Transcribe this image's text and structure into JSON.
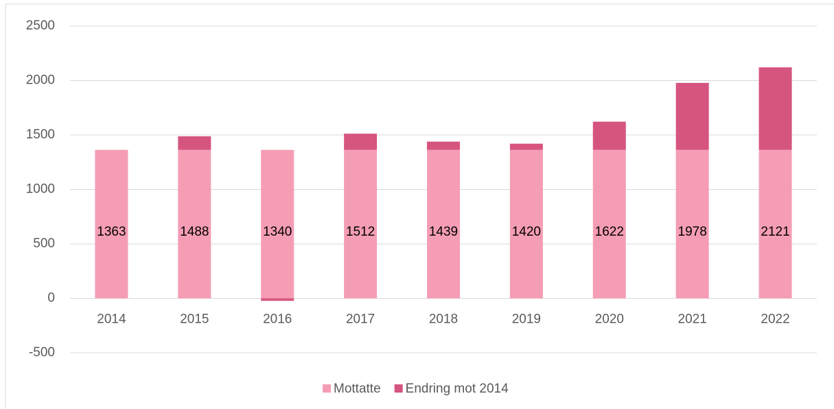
{
  "chart_data": {
    "type": "stacked_bar",
    "categories": [
      "2014",
      "2015",
      "2016",
      "2017",
      "2018",
      "2019",
      "2020",
      "2021",
      "2022"
    ],
    "series": [
      {
        "name": "Mottatte",
        "color": "#f59db5",
        "values": [
          1363,
          1363,
          1363,
          1363,
          1363,
          1363,
          1363,
          1363,
          1363
        ]
      },
      {
        "name": "Endring mot 2014",
        "color": "#d6557f",
        "values": [
          0,
          125,
          -23,
          149,
          76,
          57,
          259,
          615,
          758
        ]
      }
    ],
    "data_labels": [
      1363,
      1488,
      1340,
      1512,
      1439,
      1420,
      1622,
      1978,
      2121
    ],
    "ylim": [
      -500,
      2500
    ],
    "yticks": [
      -500,
      0,
      500,
      1000,
      1500,
      2000,
      2500
    ],
    "grid": true,
    "legend": "bottom"
  }
}
